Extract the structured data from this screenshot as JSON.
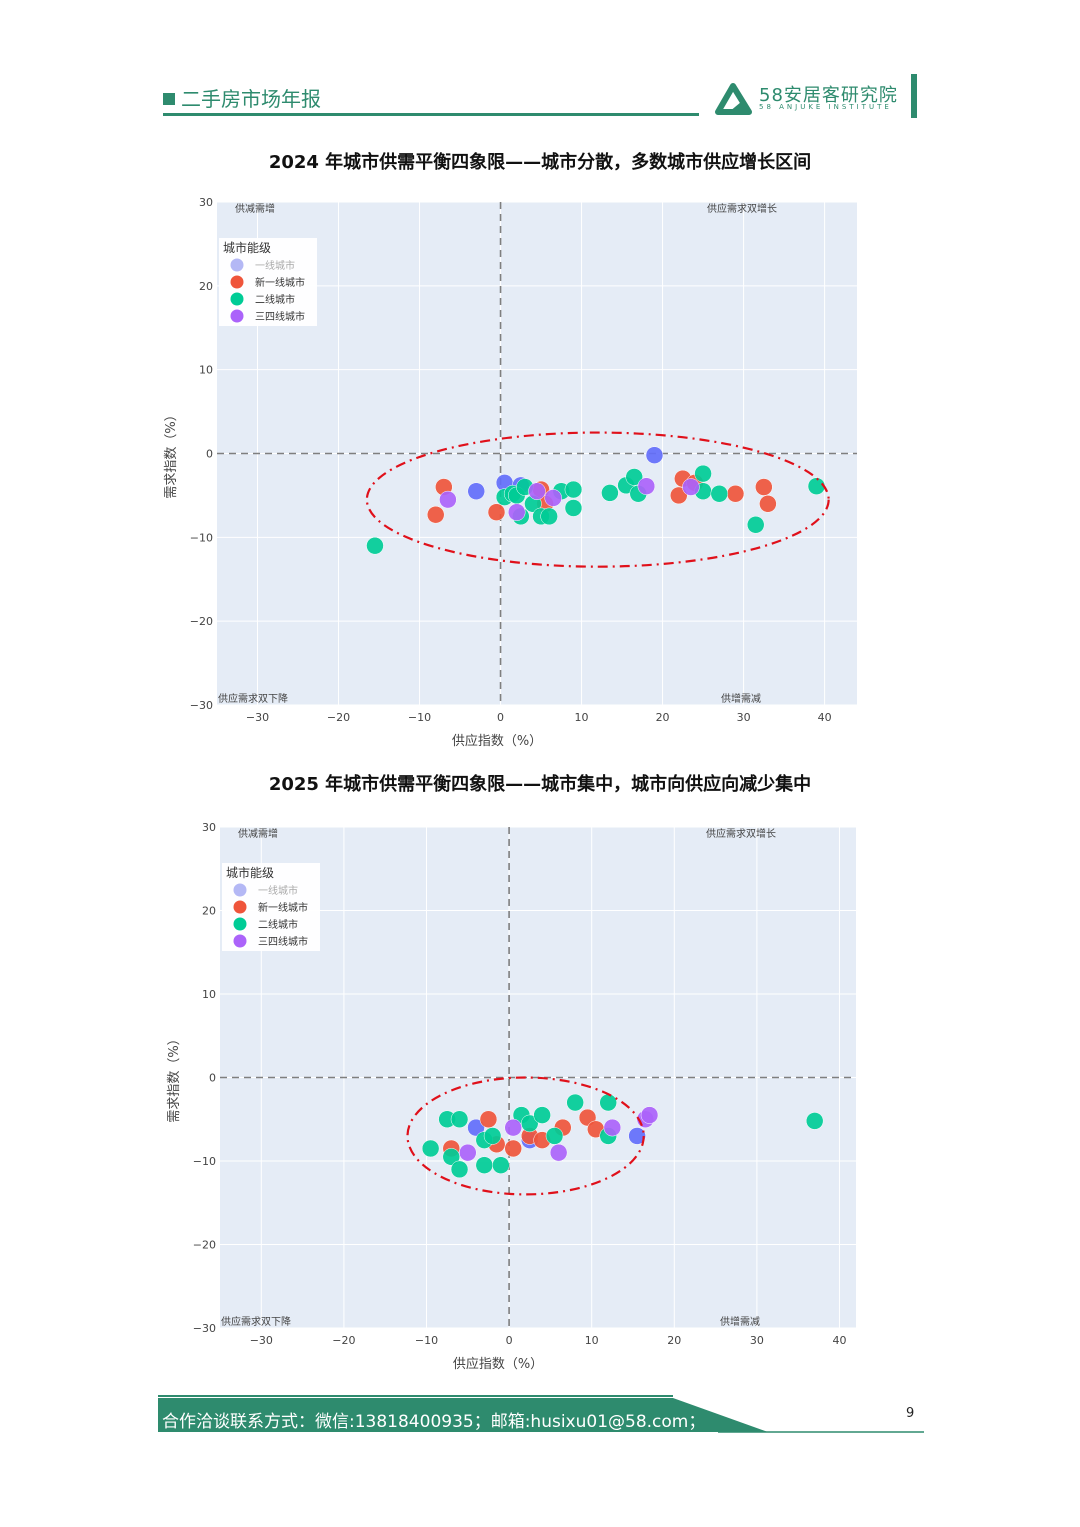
{
  "header": {
    "title": "二手房市场年报",
    "logo_name": "58安居客研究院",
    "logo_sub": "58 ANJUKE  INSTITUTE"
  },
  "footer": {
    "contact": "合作洽谈联系方式：微信:13818400935；邮箱:husixu01@58.com；",
    "page_number": "9"
  },
  "colors": {
    "brand": "#2e8b6e",
    "plot_bg": "#e5ecf6",
    "tier1": "#636efa",
    "new_tier1": "#ef553b",
    "tier2": "#00cc96",
    "tier34": "#ab63fa",
    "legend_off": "#b4b8f5",
    "ellipse": "#e0101a"
  },
  "chart_data": [
    {
      "type": "scatter",
      "title": "2024 年城市供需平衡四象限——城市分散，多数城市供应增长区间",
      "xlabel": "供应指数（%）",
      "ylabel": "需求指数（%）",
      "xlim": [
        -35,
        44
      ],
      "ylim": [
        -30,
        30
      ],
      "xticks": [
        -30,
        -20,
        -10,
        0,
        10,
        20,
        30,
        40
      ],
      "yticks": [
        30,
        20,
        10,
        0,
        -10,
        -20,
        -30
      ],
      "grid": true,
      "quadrant_labels": {
        "top_left": "供减需增",
        "top_right": "供应需求双增长",
        "bottom_left": "供应需求双下降",
        "bottom_right": "供增需减"
      },
      "legend": {
        "title": "城市能级",
        "placement": "top-left",
        "entries": [
          "一线城市",
          "新一线城市",
          "二线城市",
          "三四线城市"
        ]
      },
      "annotation": {
        "shape": "ellipse",
        "cx": 12,
        "cy": -5.5,
        "rx": 28.5,
        "ry": 8
      },
      "series": [
        {
          "name": "一线城市",
          "visible": false,
          "points": [
            [
              -3,
              -4.5
            ],
            [
              0.5,
              -3.5
            ],
            [
              2.5,
              -3.8
            ],
            [
              19,
              -0.2
            ]
          ]
        },
        {
          "name": "新一线城市",
          "points": [
            [
              -7,
              -4
            ],
            [
              -8,
              -7.3
            ],
            [
              -0.5,
              -7
            ],
            [
              5,
              -4.3
            ],
            [
              5.5,
              -6
            ],
            [
              22.5,
              -3
            ],
            [
              22,
              -5
            ],
            [
              24,
              -3.5
            ],
            [
              29,
              -4.8
            ],
            [
              32.5,
              -4
            ],
            [
              33,
              -6
            ]
          ]
        },
        {
          "name": "二线城市",
          "points": [
            [
              -15.5,
              -11
            ],
            [
              0.5,
              -5.2
            ],
            [
              1.5,
              -4.8
            ],
            [
              2,
              -5
            ],
            [
              3,
              -4
            ],
            [
              2.5,
              -7.5
            ],
            [
              4,
              -6
            ],
            [
              5,
              -7.5
            ],
            [
              6,
              -7.5
            ],
            [
              7.5,
              -4.5
            ],
            [
              9,
              -4.3
            ],
            [
              9,
              -6.5
            ],
            [
              13.5,
              -4.7
            ],
            [
              15.5,
              -3.8
            ],
            [
              16.5,
              -2.8
            ],
            [
              17,
              -4.8
            ],
            [
              25,
              -2.4
            ],
            [
              25,
              -4.5
            ],
            [
              27,
              -4.8
            ],
            [
              31.5,
              -8.5
            ],
            [
              39,
              -3.9
            ]
          ]
        },
        {
          "name": "三四线城市",
          "points": [
            [
              -6.5,
              -5.5
            ],
            [
              2,
              -7
            ],
            [
              4.5,
              -4.5
            ],
            [
              6.5,
              -5.3
            ],
            [
              18,
              -3.9
            ],
            [
              23.5,
              -4
            ]
          ]
        }
      ]
    },
    {
      "type": "scatter",
      "title": "2025 年城市供需平衡四象限——城市集中，城市向供应向减少集中",
      "xlabel": "供应指数（%）",
      "ylabel": "需求指数（%）",
      "xlim": [
        -35,
        42
      ],
      "ylim": [
        -30,
        30
      ],
      "xticks": [
        -30,
        -20,
        -10,
        0,
        10,
        20,
        30,
        40
      ],
      "yticks": [
        30,
        20,
        10,
        0,
        -10,
        -20,
        -30
      ],
      "grid": true,
      "quadrant_labels": {
        "top_left": "供减需增",
        "top_right": "供应需求双增长",
        "bottom_left": "供应需求双下降",
        "bottom_right": "供增需减"
      },
      "legend": {
        "title": "城市能级",
        "placement": "top-left",
        "entries": [
          "一线城市",
          "新一线城市",
          "二线城市",
          "三四线城市"
        ]
      },
      "annotation": {
        "shape": "ellipse",
        "cx": 2,
        "cy": -7,
        "rx": 14.3,
        "ry": 7
      },
      "series": [
        {
          "name": "一线城市",
          "visible": false,
          "points": [
            [
              -4,
              -6
            ],
            [
              2.5,
              -7.5
            ],
            [
              15.5,
              -7
            ]
          ]
        },
        {
          "name": "新一线城市",
          "points": [
            [
              -7,
              -8.5
            ],
            [
              -2.5,
              -5
            ],
            [
              -1.5,
              -8
            ],
            [
              0.5,
              -8.5
            ],
            [
              2.5,
              -7
            ],
            [
              4,
              -7.5
            ],
            [
              6.5,
              -6
            ],
            [
              9.5,
              -4.8
            ],
            [
              10.5,
              -6.2
            ]
          ]
        },
        {
          "name": "二线城市",
          "points": [
            [
              -9.5,
              -8.5
            ],
            [
              -7.5,
              -5
            ],
            [
              -6,
              -5
            ],
            [
              -7,
              -9.5
            ],
            [
              -6,
              -11
            ],
            [
              -3,
              -7.5
            ],
            [
              -2,
              -7
            ],
            [
              -3,
              -10.5
            ],
            [
              -1,
              -10.5
            ],
            [
              1.5,
              -4.5
            ],
            [
              2.5,
              -5.5
            ],
            [
              4,
              -4.5
            ],
            [
              5.5,
              -7
            ],
            [
              8,
              -3
            ],
            [
              12,
              -3
            ],
            [
              12,
              -7
            ],
            [
              37,
              -5.2
            ]
          ]
        },
        {
          "name": "三四线城市",
          "points": [
            [
              -5,
              -9
            ],
            [
              0.5,
              -6
            ],
            [
              6,
              -9
            ],
            [
              12.5,
              -6
            ],
            [
              16.5,
              -5
            ],
            [
              17,
              -4.5
            ]
          ]
        }
      ]
    }
  ]
}
